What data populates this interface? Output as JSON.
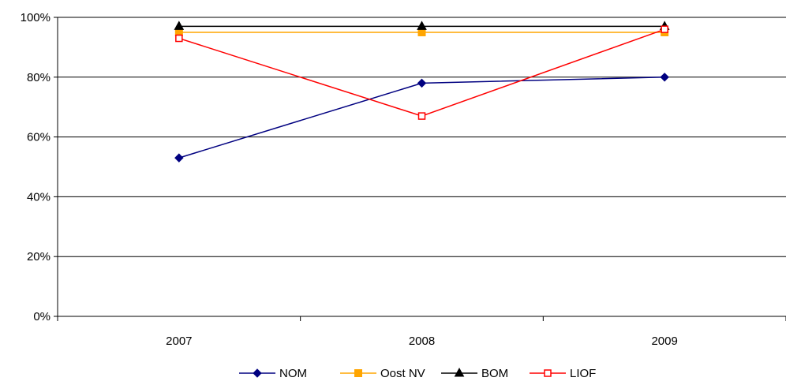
{
  "chart_data": {
    "type": "line",
    "categories": [
      "2007",
      "2008",
      "2009"
    ],
    "series": [
      {
        "name": "NOM",
        "values": [
          53,
          78,
          80
        ],
        "color": "#000080",
        "marker": "diamond-filled"
      },
      {
        "name": "Oost NV",
        "values": [
          95,
          95,
          95
        ],
        "color": "#FFA500",
        "marker": "square-filled"
      },
      {
        "name": "BOM",
        "values": [
          97,
          97,
          97
        ],
        "color": "#000000",
        "marker": "triangle-filled"
      },
      {
        "name": "LIOF",
        "values": [
          93,
          67,
          96
        ],
        "color": "#FF0000",
        "marker": "square-open"
      }
    ],
    "y_ticks": [
      "0%",
      "20%",
      "40%",
      "60%",
      "80%",
      "100%"
    ],
    "ylim": [
      0,
      100
    ],
    "y_unit": "%",
    "grid": true,
    "legend_position": "bottom"
  }
}
